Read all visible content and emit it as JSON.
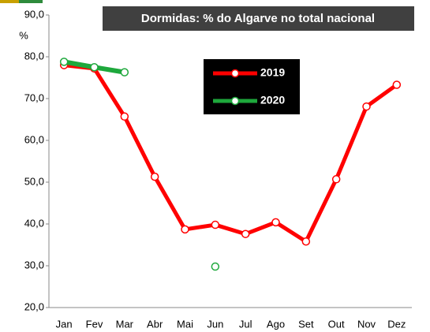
{
  "chart_data": {
    "type": "line",
    "title": "Dormidas: % do Algarve no total nacional",
    "y_label": "%",
    "categories": [
      "Jan",
      "Fev",
      "Mar",
      "Abr",
      "Mai",
      "Jun",
      "Jul",
      "Ago",
      "Set",
      "Out",
      "Nov",
      "Dez"
    ],
    "series": [
      {
        "name": "2019",
        "color": "#ff0000",
        "values": [
          78.0,
          77.2,
          65.7,
          51.3,
          38.7,
          39.8,
          37.6,
          40.4,
          35.8,
          50.7,
          68.1,
          73.3
        ]
      },
      {
        "name": "2020",
        "color": "#1ea83c",
        "values": [
          78.8,
          77.5,
          76.3,
          null,
          null,
          29.8,
          null,
          null,
          null,
          null,
          null,
          null
        ]
      }
    ],
    "ylim": [
      20,
      90
    ],
    "yticks": [
      {
        "value": 20,
        "label": "20,0"
      },
      {
        "value": 30,
        "label": "30,0"
      },
      {
        "value": 40,
        "label": "40,0"
      },
      {
        "value": 50,
        "label": "50,0"
      },
      {
        "value": 60,
        "label": "60,0"
      },
      {
        "value": 70,
        "label": "70,0"
      },
      {
        "value": 80,
        "label": "80,0"
      },
      {
        "value": 90,
        "label": "90,0"
      }
    ],
    "grid": false
  }
}
